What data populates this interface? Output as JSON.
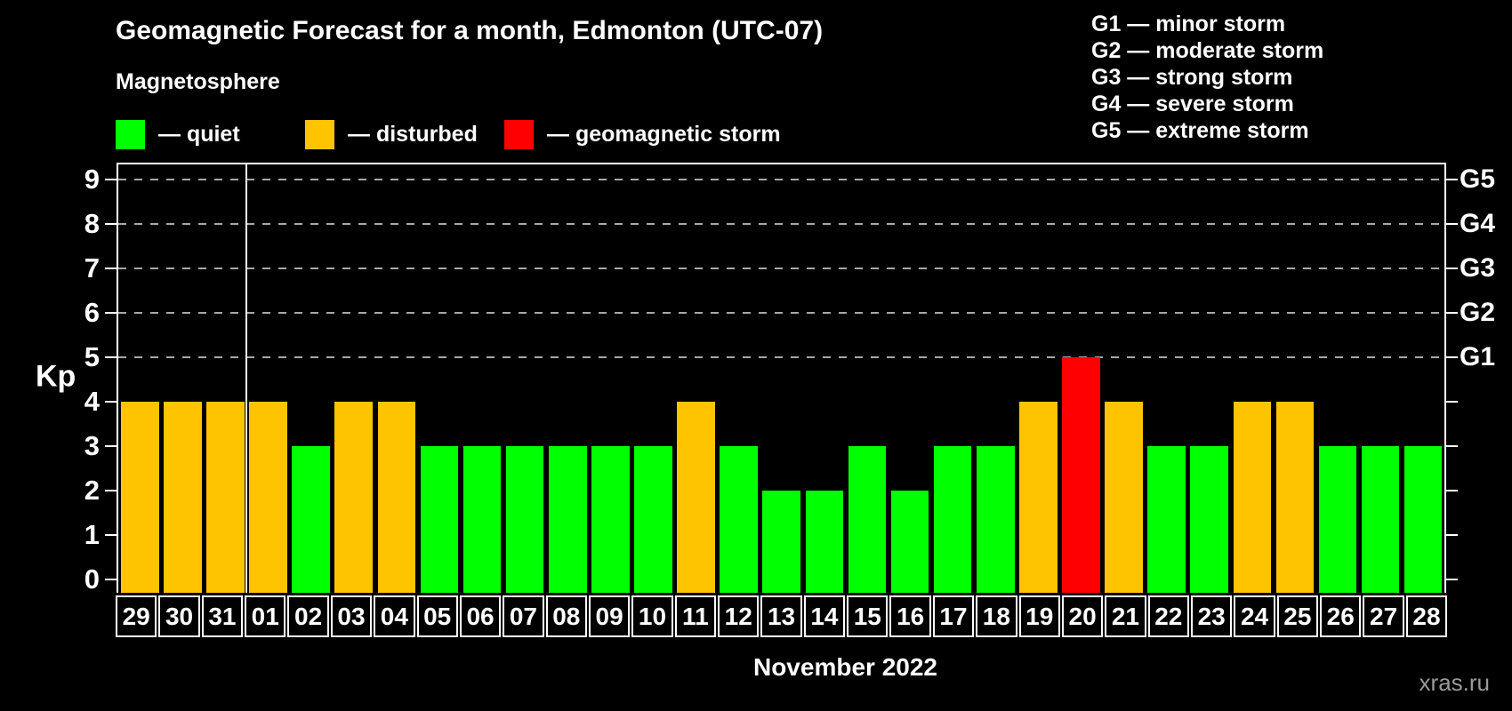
{
  "title": "Geomagnetic Forecast for a month, Edmonton (UTC-07)",
  "subtitle": "Magnetosphere",
  "legend": {
    "items": [
      {
        "key": "quiet",
        "label": "— quiet",
        "color": "#00ff00"
      },
      {
        "key": "disturbed",
        "label": "— disturbed",
        "color": "#ffc400"
      },
      {
        "key": "storm",
        "label": "— geomagnetic storm",
        "color": "#ff0000"
      }
    ]
  },
  "g_legend": [
    "G1 — minor storm",
    "G2 — moderate storm",
    "G3 — strong storm",
    "G4 — severe storm",
    "G5 — extreme storm"
  ],
  "axis": {
    "y_label": "Kp",
    "y_ticks": [
      0,
      1,
      2,
      3,
      4,
      5,
      6,
      7,
      8,
      9
    ],
    "right_labels": [
      {
        "label": "G1",
        "kp": 5
      },
      {
        "label": "G2",
        "kp": 6
      },
      {
        "label": "G3",
        "kp": 7
      },
      {
        "label": "G4",
        "kp": 8
      },
      {
        "label": "G5",
        "kp": 9
      }
    ],
    "x_label": "November 2022"
  },
  "watermark": "xras.ru",
  "chart_data": {
    "type": "bar",
    "title": "Geomagnetic Forecast for a month, Edmonton (UTC-07)",
    "xlabel": "November 2022",
    "ylabel": "Kp",
    "ylim": [
      0,
      9
    ],
    "grid_levels": [
      5,
      6,
      7,
      8,
      9
    ],
    "month_boundary_after_index": 2,
    "categories": [
      "29",
      "30",
      "31",
      "01",
      "02",
      "03",
      "04",
      "05",
      "06",
      "07",
      "08",
      "09",
      "10",
      "11",
      "12",
      "13",
      "14",
      "15",
      "16",
      "17",
      "18",
      "19",
      "20",
      "21",
      "22",
      "23",
      "24",
      "25",
      "26",
      "27",
      "28"
    ],
    "values": [
      4,
      4,
      4,
      4,
      3,
      4,
      4,
      3,
      3,
      3,
      3,
      3,
      3,
      4,
      3,
      2,
      2,
      3,
      2,
      3,
      3,
      4,
      5,
      4,
      3,
      3,
      4,
      4,
      3,
      3,
      3
    ],
    "statuses": [
      "disturbed",
      "disturbed",
      "disturbed",
      "disturbed",
      "quiet",
      "disturbed",
      "disturbed",
      "quiet",
      "quiet",
      "quiet",
      "quiet",
      "quiet",
      "quiet",
      "disturbed",
      "quiet",
      "quiet",
      "quiet",
      "quiet",
      "quiet",
      "quiet",
      "quiet",
      "disturbed",
      "storm",
      "disturbed",
      "quiet",
      "quiet",
      "disturbed",
      "disturbed",
      "quiet",
      "quiet",
      "quiet"
    ]
  }
}
